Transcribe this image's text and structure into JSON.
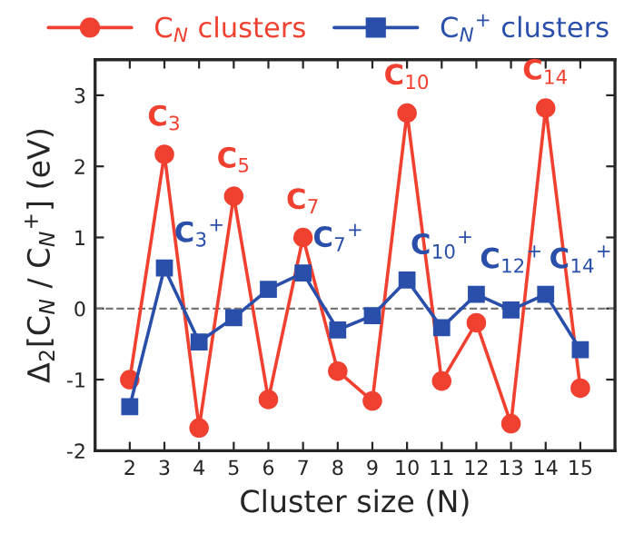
{
  "chart_data": {
    "type": "line",
    "xlabel": "Cluster size (N)",
    "ylabel": "Δ$_{2}$[C$_{N}$ / C$_{N}$$^{+}$] (eV)",
    "x": [
      2,
      3,
      4,
      5,
      6,
      7,
      8,
      9,
      10,
      11,
      12,
      13,
      14,
      15
    ],
    "series": [
      {
        "name": "C$_{N}$ clusters",
        "color": "#f04030",
        "marker": "circle",
        "values": [
          -1.0,
          2.17,
          -1.68,
          1.58,
          -1.28,
          1.0,
          -0.88,
          -1.3,
          2.75,
          -1.02,
          -0.2,
          -1.62,
          2.82,
          -1.12
        ]
      },
      {
        "name": "C$_{N}$$^{+}$ clusters",
        "color": "#2a4faa",
        "marker": "square",
        "values": [
          -1.38,
          0.57,
          -0.47,
          -0.13,
          0.27,
          0.5,
          -0.3,
          -0.1,
          0.4,
          -0.27,
          0.2,
          -0.02,
          0.2,
          -0.58
        ]
      }
    ],
    "xlim": [
      1,
      16
    ],
    "ylim": [
      -2,
      3.5
    ],
    "xticks": [
      2,
      3,
      4,
      5,
      6,
      7,
      8,
      9,
      10,
      11,
      12,
      13,
      14,
      15
    ],
    "yticks": [
      -2,
      -1,
      0,
      1,
      2,
      3
    ],
    "ref_lines": [
      {
        "axis": "y",
        "value": 0,
        "color": "#777777",
        "line_style": "dashed"
      }
    ],
    "legend": "top",
    "grid": false,
    "annotations": [
      {
        "text": "C$_{3}$",
        "x": 3,
        "y": 2.17
      },
      {
        "text": "C$_{5}$",
        "x": 5,
        "y": 1.58
      },
      {
        "text": "C$_{7}$",
        "x": 7,
        "y": 1.0
      },
      {
        "text": "C$_{10}$",
        "x": 10,
        "y": 2.75
      },
      {
        "text": "C$_{14}$",
        "x": 14,
        "y": 2.82
      },
      {
        "text": "C$_{3}$$^{+}$",
        "x": 3,
        "y": 0.57
      },
      {
        "text": "C$_{7}$$^{+}$",
        "x": 7,
        "y": 0.5
      },
      {
        "text": "C$_{10}$$^{+}$",
        "x": 10,
        "y": 0.4
      },
      {
        "text": "C$_{12}$$^{+}$",
        "x": 12,
        "y": 0.2
      },
      {
        "text": "C$_{14}$$^{+}$",
        "x": 14,
        "y": 0.2
      }
    ]
  }
}
